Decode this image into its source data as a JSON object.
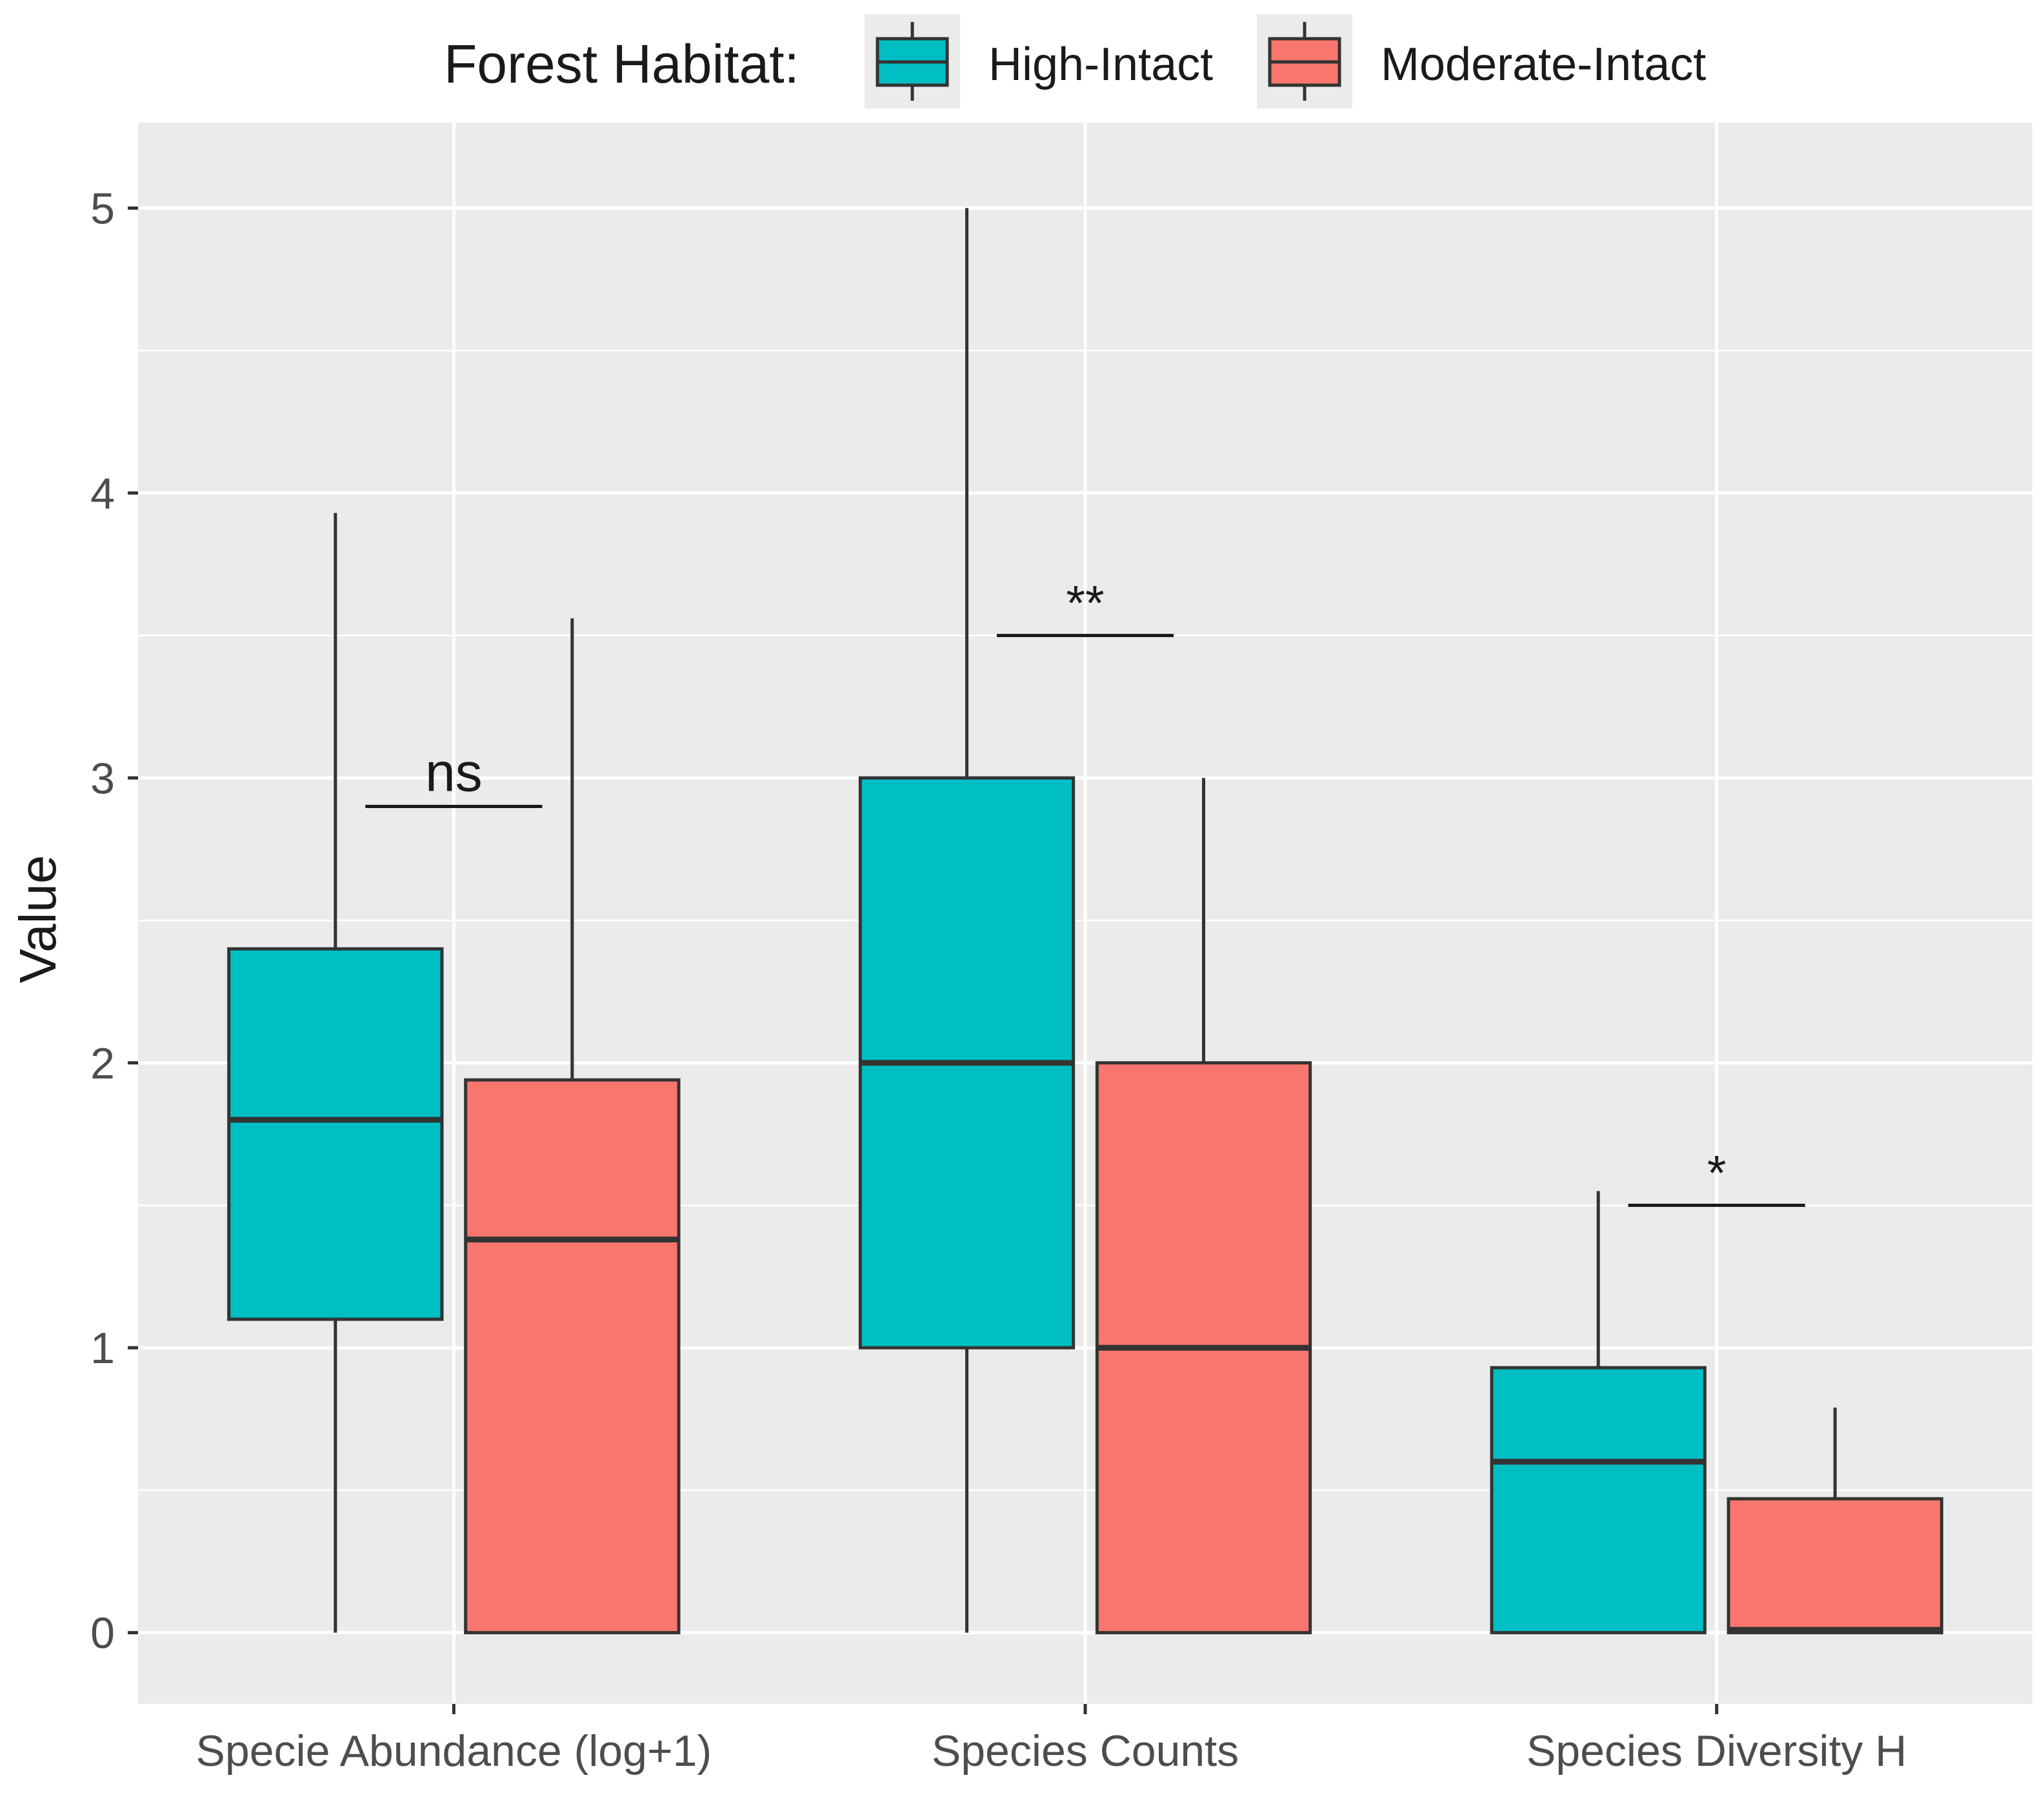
{
  "chart_data": {
    "type": "box",
    "ylabel": "Value",
    "xlabel": "",
    "ylim": [
      -0.25,
      5.3
    ],
    "yticks": [
      0,
      1,
      2,
      3,
      4,
      5
    ],
    "categories": [
      "Specie Abundance (log+1)",
      "Species Counts",
      "Species Diversity H"
    ],
    "legend": {
      "title": "Forest Habitat:",
      "position": "top",
      "entries": [
        "High-Intact",
        "Moderate-Intact"
      ]
    },
    "series": [
      {
        "name": "High-Intact",
        "color": "#00BFC4",
        "boxes": [
          {
            "min": 0,
            "q1": 1.1,
            "median": 1.8,
            "q3": 2.4,
            "max": 3.93
          },
          {
            "min": 0,
            "q1": 1.0,
            "median": 2.0,
            "q3": 3.0,
            "max": 5.0
          },
          {
            "min": 0,
            "q1": 0,
            "median": 0.6,
            "q3": 0.93,
            "max": 1.55
          }
        ]
      },
      {
        "name": "Moderate-Intact",
        "color": "#F8766D",
        "boxes": [
          {
            "min": 0,
            "q1": 0,
            "median": 1.38,
            "q3": 1.94,
            "max": 3.56
          },
          {
            "min": 0,
            "q1": 0,
            "median": 1.0,
            "q3": 2.0,
            "max": 3.0
          },
          {
            "min": 0,
            "q1": 0,
            "median": 0.01,
            "q3": 0.47,
            "max": 0.79
          }
        ]
      }
    ],
    "annotations": [
      {
        "category": "Specie Abundance (log+1)",
        "label": "ns",
        "y": 2.9
      },
      {
        "category": "Species Counts",
        "label": "**",
        "y": 3.5
      },
      {
        "category": "Species Diversity H",
        "label": "*",
        "y": 1.5
      }
    ],
    "grid": true,
    "panel_background": "#EBEBEB"
  }
}
